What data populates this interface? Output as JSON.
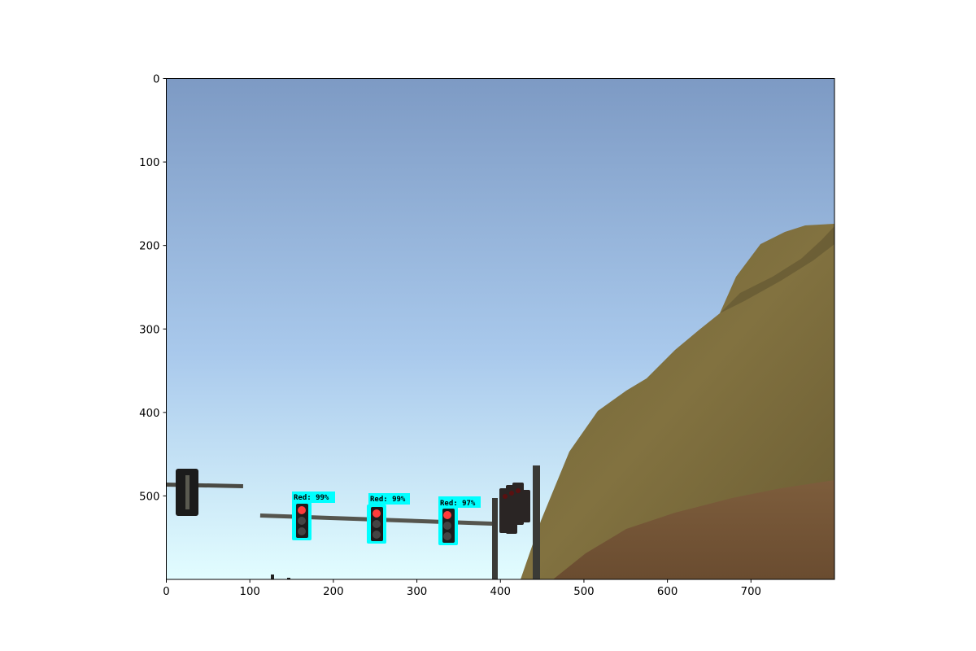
{
  "image": {
    "x_ticks": [
      "0",
      "100",
      "200",
      "300",
      "400",
      "500",
      "600",
      "700"
    ],
    "y_ticks": [
      "0",
      "100",
      "200",
      "300",
      "400",
      "500"
    ],
    "x_tick_values": [
      0,
      100,
      200,
      300,
      400,
      500,
      600,
      700
    ],
    "y_tick_values": [
      0,
      100,
      200,
      300,
      400,
      500
    ],
    "x_range": [
      0,
      800
    ],
    "y_range": [
      0,
      600
    ],
    "colors": {
      "sky_top": "#7d9ac4",
      "sky_bottom": "#e2fdff",
      "hill": "#7a6b3c",
      "hill_dark": "#5d5130",
      "dirt": "#7a5a3a",
      "detection_box": "#00ffff",
      "pole": "#3a3a36"
    }
  },
  "detections": [
    {
      "label": "Red:  99%",
      "x1": 153,
      "y1": 507,
      "x2": 178,
      "y2": 555
    },
    {
      "label": "Red:  99%",
      "x1": 244,
      "y1": 511,
      "x2": 268,
      "y2": 558
    },
    {
      "label": "Red:  97%",
      "x1": 329,
      "y1": 513,
      "x2": 354,
      "y2": 560
    }
  ]
}
